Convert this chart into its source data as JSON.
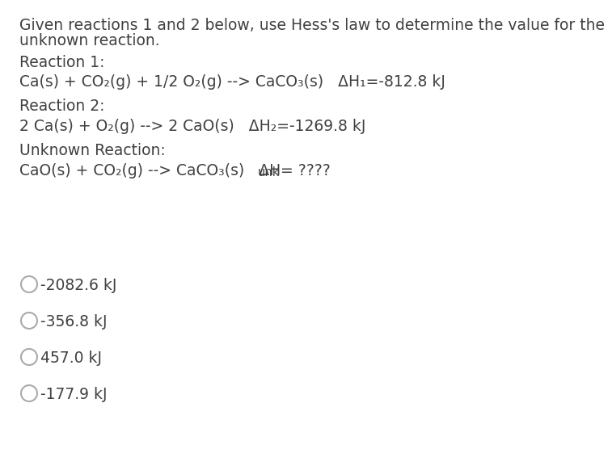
{
  "bg_color": "#ffffff",
  "text_color": "#404040",
  "line1": "Given reactions 1 and 2 below, use Hess's law to determine the value for the",
  "line2": "unknown reaction.",
  "reaction1_label": "Reaction 1:",
  "reaction1_eq": "Ca(s) + CO₂(g) + 1/2 O₂(g) --> CaCO₃(s)   ΔH₁=-812.8 kJ",
  "reaction2_label": "Reaction 2:",
  "reaction2_eq": "2 Ca(s) + O₂(g) --> 2 CaO(s)   ΔH₂=-1269.8 kJ",
  "unknown_label": "Unknown Reaction:",
  "unknown_eq_main": "CaO(s) + CO₂(g) --> CaCO₃(s)   ΔH",
  "unknown_eq_sub": "unk",
  "unknown_eq_tail": " = ????",
  "choices": [
    "-2082.6 kJ",
    "-356.8 kJ",
    "457.0 kJ",
    "-177.9 kJ"
  ],
  "circle_color": "#aaaaaa",
  "font_size": 13.5,
  "font_size_small": 10.5
}
